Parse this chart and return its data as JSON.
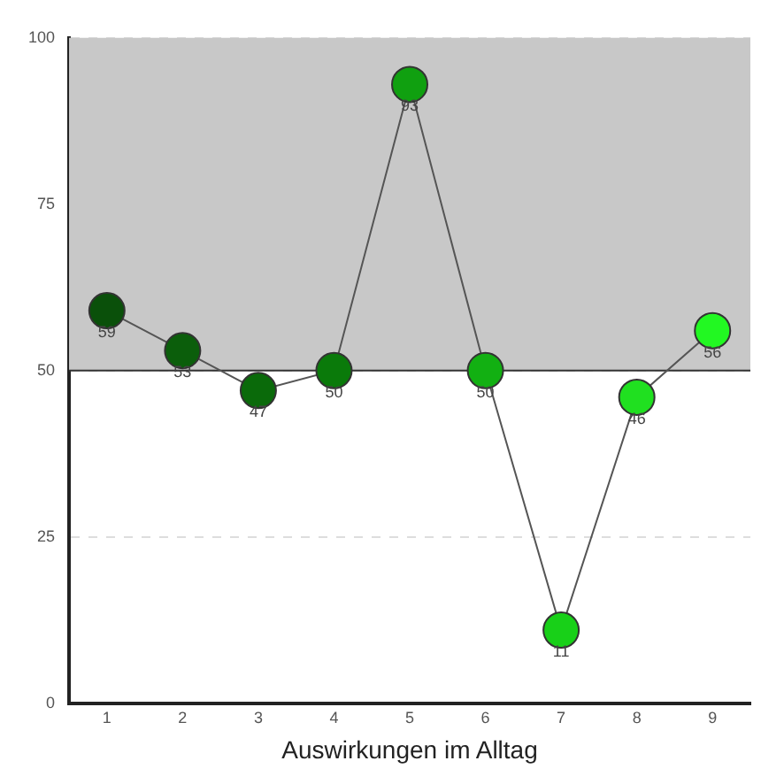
{
  "chart_data": {
    "type": "line",
    "xlabel": "Auswirkungen im Alltag",
    "categories": [
      "1",
      "2",
      "3",
      "4",
      "5",
      "6",
      "7",
      "8",
      "9"
    ],
    "series": [
      {
        "color": "#555555",
        "colors": [
          "#0a500a",
          "#0b5e0b",
          "#0a6a0a",
          "#0a7a0a",
          "#10a010",
          "#12b012",
          "#18d018",
          "#20e020",
          "#22f822"
        ],
        "values": [
          59,
          53,
          47,
          50,
          93,
          50,
          11,
          46,
          56
        ]
      }
    ],
    "ylim": [
      0,
      100
    ],
    "yticks": [
      0,
      25,
      50,
      75,
      100
    ],
    "grid": "y",
    "marker": "circle",
    "data_labels": true,
    "bands": [
      {
        "axis": "y",
        "from": 50,
        "to": 100,
        "color": "#c8c8c8"
      }
    ],
    "ref_lines": [
      {
        "axis": "y",
        "value": 50,
        "color": "#333333"
      }
    ]
  }
}
